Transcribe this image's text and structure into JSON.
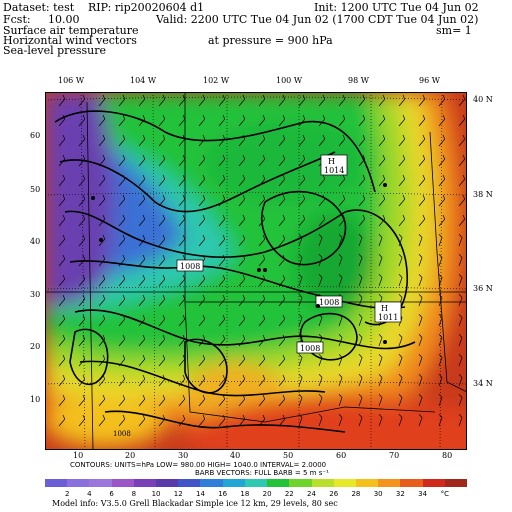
{
  "header": {
    "dataset_label": "Dataset: test",
    "rip_label": "RIP: rip20020604 d1",
    "init_label": "Init: 1200 UTC Tue 04 Jun 02",
    "fcst_label": "Fcst:",
    "fcst_value": "10.00",
    "valid_label": "Valid: 2200 UTC Tue 04 Jun 02 (1700 CDT Tue 04 Jun 02)",
    "field1": "Surface air temperature",
    "field2": "Horizontal wind vectors",
    "field3": "Sea-level pressure",
    "pressure_label": "at pressure =  900 hPa",
    "sm_label": "sm= 1"
  },
  "map": {
    "lon_labels": [
      "106 W",
      "104 W",
      "102 W",
      "100 W",
      "98 W",
      "96 W"
    ],
    "lat_labels": [
      "40 N",
      "38 N",
      "36 N",
      "34 N"
    ],
    "y_ticks": [
      "60",
      "50",
      "40",
      "30",
      "20",
      "10"
    ],
    "x_ticks": [
      "10",
      "20",
      "30",
      "40",
      "50",
      "60",
      "70",
      "80"
    ],
    "pressure_labels": [
      {
        "text": "1008"
      },
      {
        "text": "1008"
      },
      {
        "text": "1008"
      },
      {
        "text": "1008"
      },
      {
        "text": "1008"
      }
    ],
    "high_label": "H",
    "high_value": "1014",
    "high2_label": "H",
    "high2_value": "1011",
    "low_value": "1008",
    "colors": {
      "purple": "#6a3fb0",
      "blue": "#3b6fd4",
      "cyan": "#1fb8c8",
      "green": "#22c23a",
      "yellow": "#e8e82a",
      "orange": "#f49a1c",
      "red": "#e0341c",
      "darkred": "#b0281a"
    }
  },
  "footer": {
    "contours_line": "CONTOURS:  UNITS=hPa   LOW=  980.00       HIGH=  1040.0       INTERVAL=    2.0000",
    "barbs_line": "BARB VECTORS:  FULL BARB = 5 m s⁻¹",
    "model_info": "Model info: V3.5.0  Grell      Blackadar  Simple ice    12 km,  29 levels,   80 sec"
  },
  "colorbar": {
    "labels": [
      "2",
      "4",
      "6",
      "8",
      "10",
      "12",
      "14",
      "16",
      "18",
      "20",
      "22",
      "24",
      "26",
      "28",
      "30",
      "32",
      "34",
      "°C"
    ],
    "colors": [
      "#6a5fd6",
      "#8a6fde",
      "#9b76dc",
      "#9a55c7",
      "#7a3fb8",
      "#5a3aa8",
      "#3f55c8",
      "#2f7fd8",
      "#22a6d6",
      "#2fc8b0",
      "#22c23a",
      "#6ed42a",
      "#b8e02a",
      "#e8e82a",
      "#f4c01c",
      "#f4941c",
      "#e85c1c",
      "#d0281a",
      "#a0281a"
    ]
  }
}
